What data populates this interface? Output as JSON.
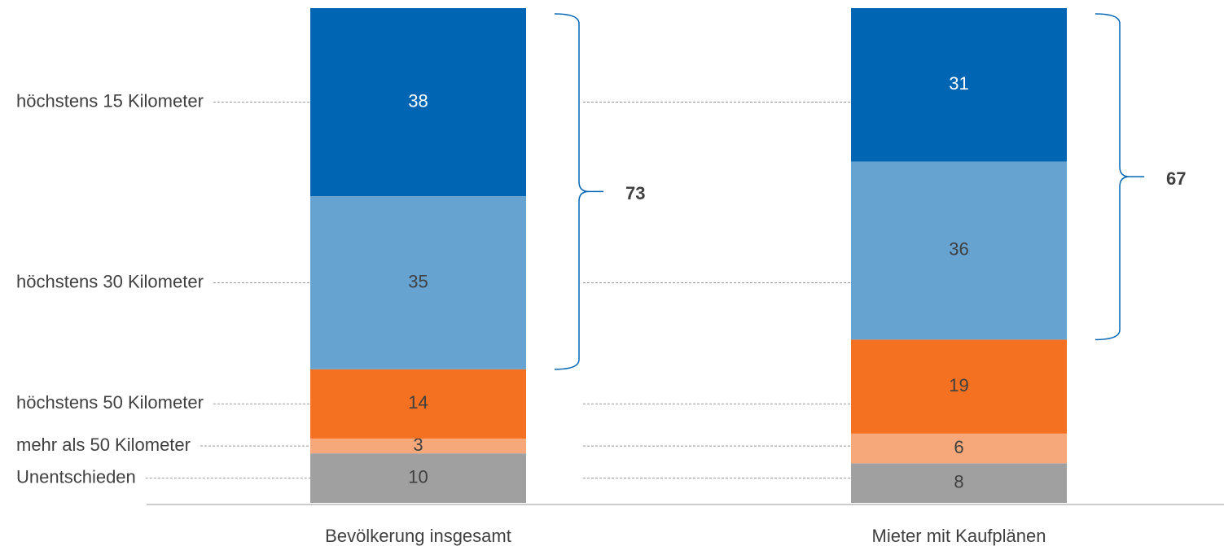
{
  "chart_data": {
    "type": "stacked_bar",
    "categories": [
      "Bevölkerung insgesamt",
      "Mieter mit Kaufplänen"
    ],
    "series": [
      {
        "name": "Unentschieden",
        "color": "#a0a0a0",
        "values": [
          10,
          8
        ]
      },
      {
        "name": "mehr als 50 Kilometer",
        "color": "#f7a87b",
        "values": [
          3,
          6
        ]
      },
      {
        "name": "höchstens 50 Kilometer",
        "color": "#f37121",
        "values": [
          14,
          19
        ]
      },
      {
        "name": "höchstens 30 Kilometer",
        "color": "#66a3d1",
        "values": [
          35,
          36
        ]
      },
      {
        "name": "höchstens 15 Kilometer",
        "color": "#0066b3",
        "values": [
          38,
          31
        ]
      }
    ],
    "brace_totals": [
      73,
      67
    ],
    "ylim": [
      0,
      100
    ]
  }
}
